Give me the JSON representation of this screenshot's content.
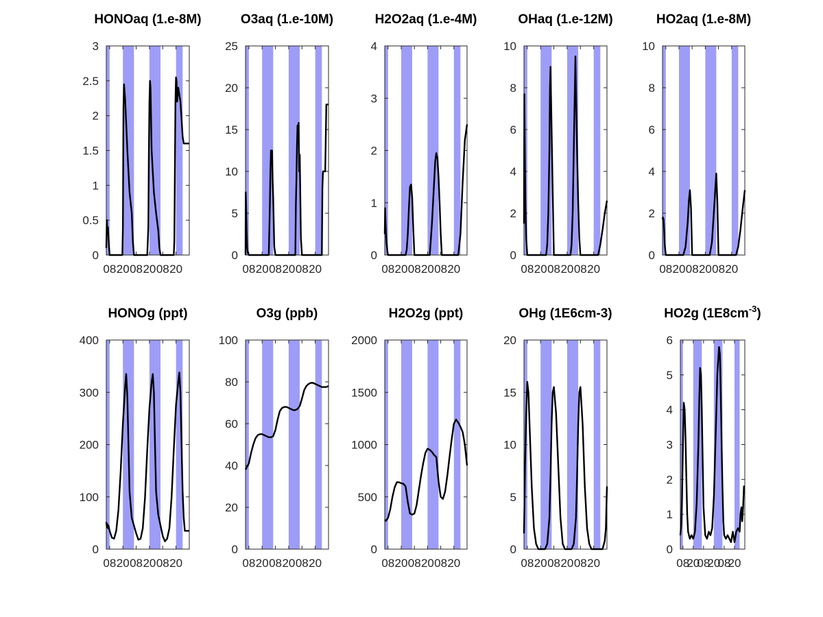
{
  "chart_data": [
    {
      "type": "line",
      "title": "HONOaq (1.e-8M)",
      "ylim": [
        0,
        3
      ],
      "yticks": [
        0,
        0.5,
        1,
        1.5,
        2,
        2.5,
        3
      ],
      "ytick_labels": [
        "0",
        "0.5",
        "1",
        "1.5",
        "2",
        "2.5",
        "3"
      ],
      "xlim": [
        5,
        80
      ],
      "xticks": [
        8,
        20,
        32,
        44,
        56,
        68
      ],
      "xtick_labels": [
        "08",
        "20",
        "08",
        "20",
        "08",
        "20"
      ],
      "night_bands": [
        [
          5,
          8
        ],
        [
          20,
          30
        ],
        [
          44,
          54
        ],
        [
          68,
          74
        ]
      ],
      "x": [
        5,
        5.5,
        6,
        6.5,
        7,
        8,
        18,
        19.5,
        20,
        20.5,
        21,
        22,
        24,
        26,
        28,
        29,
        30,
        42,
        43,
        43.5,
        44,
        44.5,
        45,
        46,
        48,
        50,
        52,
        53,
        54,
        66,
        66.5,
        67,
        67.5,
        68,
        68.5,
        69,
        70,
        72,
        74,
        75,
        80
      ],
      "y": [
        0.1,
        0.5,
        0.3,
        0.4,
        0.25,
        0,
        0,
        0,
        0.4,
        2.1,
        2.45,
        2.25,
        1.5,
        0.9,
        0.6,
        0.2,
        0,
        0,
        0.4,
        1.5,
        2.2,
        2.5,
        2.4,
        1.5,
        0.9,
        0.6,
        0.35,
        0.1,
        0,
        0,
        0.2,
        1.2,
        2.2,
        2.55,
        2.5,
        2.2,
        2.4,
        2.2,
        1.7,
        1.6,
        1.6
      ]
    },
    {
      "type": "line",
      "title": "O3aq (1.e-10M)",
      "ylim": [
        0,
        25
      ],
      "yticks": [
        0,
        5,
        10,
        15,
        20,
        25
      ],
      "ytick_labels": [
        "0",
        "5",
        "10",
        "15",
        "20",
        "25"
      ],
      "xlim": [
        5,
        80
      ],
      "xticks": [
        8,
        20,
        32,
        44,
        56,
        68
      ],
      "xtick_labels": [
        "08",
        "20",
        "08",
        "20",
        "08",
        "20"
      ],
      "night_bands": [
        [
          5,
          8
        ],
        [
          20,
          30
        ],
        [
          44,
          54
        ],
        [
          68,
          74
        ]
      ],
      "x": [
        5,
        5.2,
        5.5,
        6,
        6.5,
        7,
        8,
        26,
        27,
        27.5,
        28,
        28.5,
        29,
        29.5,
        30,
        30.5,
        31,
        32,
        50,
        50.5,
        51,
        51.5,
        52,
        52.5,
        53,
        53.5,
        54,
        54.5,
        55,
        56,
        74,
        74.5,
        75,
        76,
        77,
        78,
        80
      ],
      "y": [
        0,
        7.5,
        6,
        3,
        1,
        0.3,
        0,
        0,
        6,
        10,
        12.5,
        11.5,
        12.5,
        9,
        7,
        4,
        1,
        0,
        0,
        6,
        9,
        13,
        15.5,
        15,
        15.8,
        10,
        12,
        7,
        2,
        0,
        0,
        8,
        10,
        10,
        10,
        18,
        18
      ]
    },
    {
      "type": "line",
      "title": "H2O2aq (1.e-4M)",
      "ylim": [
        0,
        4
      ],
      "yticks": [
        0,
        1,
        2,
        3,
        4
      ],
      "ytick_labels": [
        "0",
        "1",
        "2",
        "3",
        "4"
      ],
      "xlim": [
        5,
        80
      ],
      "xticks": [
        8,
        20,
        32,
        44,
        56,
        68
      ],
      "xtick_labels": [
        "08",
        "20",
        "08",
        "20",
        "08",
        "20"
      ],
      "night_bands": [
        [
          5,
          8
        ],
        [
          20,
          30
        ],
        [
          44,
          54
        ],
        [
          68,
          74
        ]
      ],
      "x": [
        5,
        5.3,
        5.8,
        6.5,
        7.5,
        8,
        24,
        25,
        26,
        27,
        28,
        29,
        30,
        31,
        32,
        46,
        48,
        50,
        51,
        52,
        53,
        54,
        55,
        56,
        57,
        70,
        72,
        74,
        76,
        78,
        80
      ],
      "y": [
        0.4,
        0.9,
        0.6,
        0.25,
        0.05,
        0,
        0,
        0.1,
        0.4,
        0.9,
        1.3,
        1.35,
        1.1,
        0.5,
        0,
        0,
        0.6,
        1.4,
        1.8,
        1.95,
        1.85,
        1.5,
        1.0,
        0.4,
        0,
        0,
        0,
        0.4,
        1.4,
        2.2,
        2.5
      ]
    },
    {
      "type": "line",
      "title": "OHaq (1.e-12M)",
      "ylim": [
        0,
        10
      ],
      "yticks": [
        0,
        2,
        4,
        6,
        8,
        10
      ],
      "ytick_labels": [
        "0",
        "2",
        "4",
        "6",
        "8",
        "10"
      ],
      "xlim": [
        5,
        80
      ],
      "xticks": [
        8,
        20,
        32,
        44,
        56,
        68
      ],
      "xtick_labels": [
        "08",
        "20",
        "08",
        "20",
        "08",
        "20"
      ],
      "night_bands": [
        [
          5,
          8
        ],
        [
          20,
          30
        ],
        [
          44,
          54
        ],
        [
          68,
          74
        ]
      ],
      "x": [
        5,
        5.3,
        5.8,
        6.3,
        7,
        8,
        25,
        26,
        27,
        28,
        28.5,
        29,
        30,
        31,
        32,
        47,
        48,
        49,
        50,
        51,
        51.5,
        52,
        53,
        54,
        55,
        56,
        70,
        72,
        74,
        76,
        78,
        80
      ],
      "y": [
        1.5,
        7.7,
        5,
        2.5,
        0.8,
        0,
        0,
        0.5,
        2,
        5,
        8,
        9,
        6,
        3,
        0,
        0,
        0.5,
        2,
        5,
        8,
        9.5,
        8,
        5,
        2.5,
        0.8,
        0,
        0,
        0,
        0.5,
        1.2,
        2,
        2.6
      ]
    },
    {
      "type": "line",
      "title": "HO2aq (1.e-8M)",
      "ylim": [
        0,
        10
      ],
      "yticks": [
        0,
        2,
        4,
        6,
        8,
        10
      ],
      "ytick_labels": [
        "0",
        "2",
        "4",
        "6",
        "8",
        "10"
      ],
      "xlim": [
        5,
        80
      ],
      "xticks": [
        8,
        20,
        32,
        44,
        56,
        68
      ],
      "xtick_labels": [
        "08",
        "20",
        "08",
        "20",
        "08",
        "20"
      ],
      "night_bands": [
        [
          5,
          8
        ],
        [
          20,
          30
        ],
        [
          44,
          54
        ],
        [
          68,
          74
        ]
      ],
      "x": [
        5,
        5.3,
        6,
        6.5,
        7,
        8,
        22,
        24,
        26,
        28,
        29,
        30,
        31,
        32,
        46,
        48,
        50,
        52,
        53,
        54,
        55,
        56,
        70,
        72,
        74,
        76,
        78,
        80
      ],
      "y": [
        1.7,
        1.8,
        1.7,
        1.2,
        0.5,
        0,
        0,
        0,
        0.4,
        1.6,
        2.6,
        3.1,
        2.2,
        0,
        0,
        0,
        0.6,
        2.2,
        3.1,
        3.9,
        2.5,
        0,
        0,
        0,
        0.4,
        1.2,
        2.2,
        3.1
      ]
    },
    {
      "type": "line",
      "title": "HONOg (ppt)",
      "ylim": [
        0,
        400
      ],
      "yticks": [
        0,
        100,
        200,
        300,
        400
      ],
      "ytick_labels": [
        "0",
        "100",
        "200",
        "300",
        "400"
      ],
      "xlim": [
        5,
        80
      ],
      "xticks": [
        8,
        20,
        32,
        44,
        56,
        68
      ],
      "xtick_labels": [
        "08",
        "20",
        "08",
        "20",
        "08",
        "20"
      ],
      "night_bands": [
        [
          5,
          8
        ],
        [
          20,
          30
        ],
        [
          44,
          54
        ],
        [
          68,
          74
        ]
      ],
      "x": [
        5,
        5.5,
        6,
        6.5,
        7,
        8,
        10,
        12,
        14,
        16,
        18,
        20,
        22,
        23,
        24,
        25,
        26,
        28,
        30,
        32,
        34,
        36,
        38,
        40,
        42,
        44,
        46,
        47,
        48,
        49,
        50,
        52,
        54,
        56,
        58,
        60,
        62,
        64,
        66,
        68,
        70,
        71,
        72,
        73,
        74,
        75,
        76,
        78,
        80
      ],
      "y": [
        52,
        42,
        48,
        40,
        45,
        35,
        22,
        20,
        35,
        75,
        150,
        240,
        310,
        335,
        290,
        200,
        110,
        60,
        45,
        30,
        18,
        20,
        40,
        100,
        190,
        270,
        320,
        335,
        300,
        200,
        110,
        65,
        45,
        25,
        15,
        20,
        40,
        100,
        190,
        275,
        320,
        338,
        300,
        200,
        110,
        60,
        35,
        35,
        35
      ]
    },
    {
      "type": "line",
      "title": "O3g (ppb)",
      "ylim": [
        0,
        100
      ],
      "yticks": [
        0,
        20,
        40,
        60,
        80,
        100
      ],
      "ytick_labels": [
        "0",
        "20",
        "40",
        "60",
        "80",
        "100"
      ],
      "xlim": [
        5,
        80
      ],
      "xticks": [
        8,
        20,
        32,
        44,
        56,
        68
      ],
      "xtick_labels": [
        "08",
        "20",
        "08",
        "20",
        "08",
        "20"
      ],
      "night_bands": [
        [
          5,
          8
        ],
        [
          20,
          30
        ],
        [
          44,
          54
        ],
        [
          68,
          74
        ]
      ],
      "x": [
        5,
        6,
        8,
        10,
        12,
        14,
        16,
        18,
        20,
        22,
        24,
        26,
        28,
        30,
        32,
        34,
        36,
        38,
        40,
        42,
        44,
        46,
        48,
        50,
        52,
        54,
        56,
        58,
        60,
        62,
        64,
        66,
        68,
        70,
        72,
        74,
        76,
        78,
        80
      ],
      "y": [
        38,
        39,
        41,
        46,
        50,
        53,
        54.5,
        55,
        55,
        54.5,
        54,
        53.5,
        53.5,
        54,
        57,
        62,
        66,
        67.5,
        68,
        68,
        67.5,
        67,
        66.5,
        66.5,
        67,
        68.5,
        72,
        76,
        78,
        79,
        79.5,
        79.5,
        79,
        78.5,
        78,
        77.5,
        77.5,
        77.5,
        78
      ]
    },
    {
      "type": "line",
      "title": "H2O2g (ppt)",
      "ylim": [
        0,
        2000
      ],
      "yticks": [
        0,
        500,
        1000,
        1500,
        2000
      ],
      "ytick_labels": [
        "0",
        "500",
        "1000",
        "1500",
        "2000"
      ],
      "xlim": [
        5,
        80
      ],
      "xticks": [
        8,
        20,
        32,
        44,
        56,
        68
      ],
      "xtick_labels": [
        "08",
        "20",
        "08",
        "20",
        "08",
        "20"
      ],
      "night_bands": [
        [
          5,
          8
        ],
        [
          20,
          30
        ],
        [
          44,
          54
        ],
        [
          68,
          74
        ]
      ],
      "x": [
        5,
        6,
        8,
        10,
        12,
        14,
        16,
        18,
        20,
        22,
        24,
        26,
        28,
        30,
        32,
        34,
        36,
        38,
        40,
        42,
        44,
        46,
        48,
        50,
        52,
        54,
        56,
        58,
        60,
        62,
        64,
        66,
        68,
        70,
        72,
        74,
        76,
        78,
        80
      ],
      "y": [
        280,
        270,
        300,
        380,
        500,
        590,
        640,
        640,
        630,
        625,
        600,
        450,
        340,
        330,
        340,
        420,
        560,
        700,
        820,
        920,
        960,
        950,
        930,
        900,
        880,
        650,
        500,
        480,
        550,
        700,
        880,
        1050,
        1200,
        1240,
        1210,
        1170,
        1120,
        1000,
        800
      ]
    },
    {
      "type": "line",
      "title": "OHg (1E6cm-3)",
      "ylim": [
        0,
        20
      ],
      "yticks": [
        0,
        5,
        10,
        15,
        20
      ],
      "ytick_labels": [
        "0",
        "5",
        "10",
        "15",
        "20"
      ],
      "xlim": [
        5,
        80
      ],
      "xticks": [
        8,
        20,
        32,
        44,
        56,
        68
      ],
      "xtick_labels": [
        "08",
        "20",
        "08",
        "20",
        "08",
        "20"
      ],
      "night_bands": [
        [
          5,
          8
        ],
        [
          20,
          30
        ],
        [
          44,
          54
        ],
        [
          68,
          74
        ]
      ],
      "x": [
        5,
        5.5,
        6,
        7,
        8,
        9,
        10,
        12,
        14,
        16,
        18,
        20,
        22,
        24,
        26,
        28,
        29,
        30,
        31,
        32,
        34,
        36,
        38,
        40,
        42,
        44,
        46,
        48,
        50,
        52,
        53,
        54,
        55,
        56,
        58,
        60,
        62,
        64,
        66,
        68,
        70,
        72,
        74,
        76,
        78,
        79,
        80
      ],
      "y": [
        1.5,
        4.5,
        8,
        13,
        16,
        15,
        12,
        6,
        2,
        0.5,
        0,
        0,
        0,
        0,
        0.5,
        3,
        7,
        12,
        15,
        15.5,
        13,
        8,
        3,
        0.5,
        0,
        0,
        0,
        0,
        0.5,
        3,
        7,
        12,
        15,
        15.5,
        12,
        6,
        2,
        0.5,
        0,
        0,
        0,
        0,
        0,
        0,
        0.8,
        2,
        6
      ]
    },
    {
      "type": "line",
      "title": "HO2g (1E8cm^-3)",
      "title_main": "HO2g (1E8cm",
      "title_sup": "-3",
      "title_end": ")",
      "ylim": [
        0,
        6
      ],
      "yticks": [
        0,
        1,
        2,
        3,
        4,
        5,
        6
      ],
      "ytick_labels": [
        "0",
        "1",
        "2",
        "3",
        "4",
        "5",
        "6"
      ],
      "xlim": [
        5,
        80
      ],
      "xticks": [
        8,
        20,
        32,
        44,
        56,
        68
      ],
      "xtick_labels": [
        "08",
        "20",
        "08",
        "20",
        "08",
        "20"
      ],
      "night_bands": [
        [
          5,
          8
        ],
        [
          20,
          30
        ],
        [
          44,
          54
        ],
        [
          68,
          74
        ]
      ],
      "x": [
        5,
        6,
        7,
        8,
        9,
        10,
        11,
        12,
        13,
        14,
        16,
        18,
        20,
        22,
        24,
        26,
        27,
        28,
        29,
        30,
        31,
        32,
        34,
        36,
        38,
        40,
        42,
        44,
        46,
        48,
        50,
        51,
        52,
        53,
        54,
        55,
        56,
        58,
        60,
        62,
        64,
        66,
        68,
        70,
        72,
        74,
        75,
        76,
        77,
        78,
        79,
        80
      ],
      "y": [
        0.4,
        0.7,
        1.5,
        3,
        4.2,
        4,
        3.2,
        2,
        1,
        0.5,
        0.3,
        0.4,
        0.3,
        0.5,
        1.3,
        3,
        4.3,
        5.2,
        5,
        4,
        2.5,
        1.2,
        0.4,
        0.3,
        0.5,
        0.4,
        0.6,
        1.5,
        3.2,
        5,
        5.8,
        5.6,
        4.5,
        3,
        1.8,
        0.8,
        0.4,
        0.3,
        0.4,
        0.3,
        0.2,
        0.5,
        0.2,
        0.5,
        0.6,
        0.5,
        1,
        1.2,
        0.8,
        1.2,
        1.8,
        1.8
      ]
    }
  ]
}
